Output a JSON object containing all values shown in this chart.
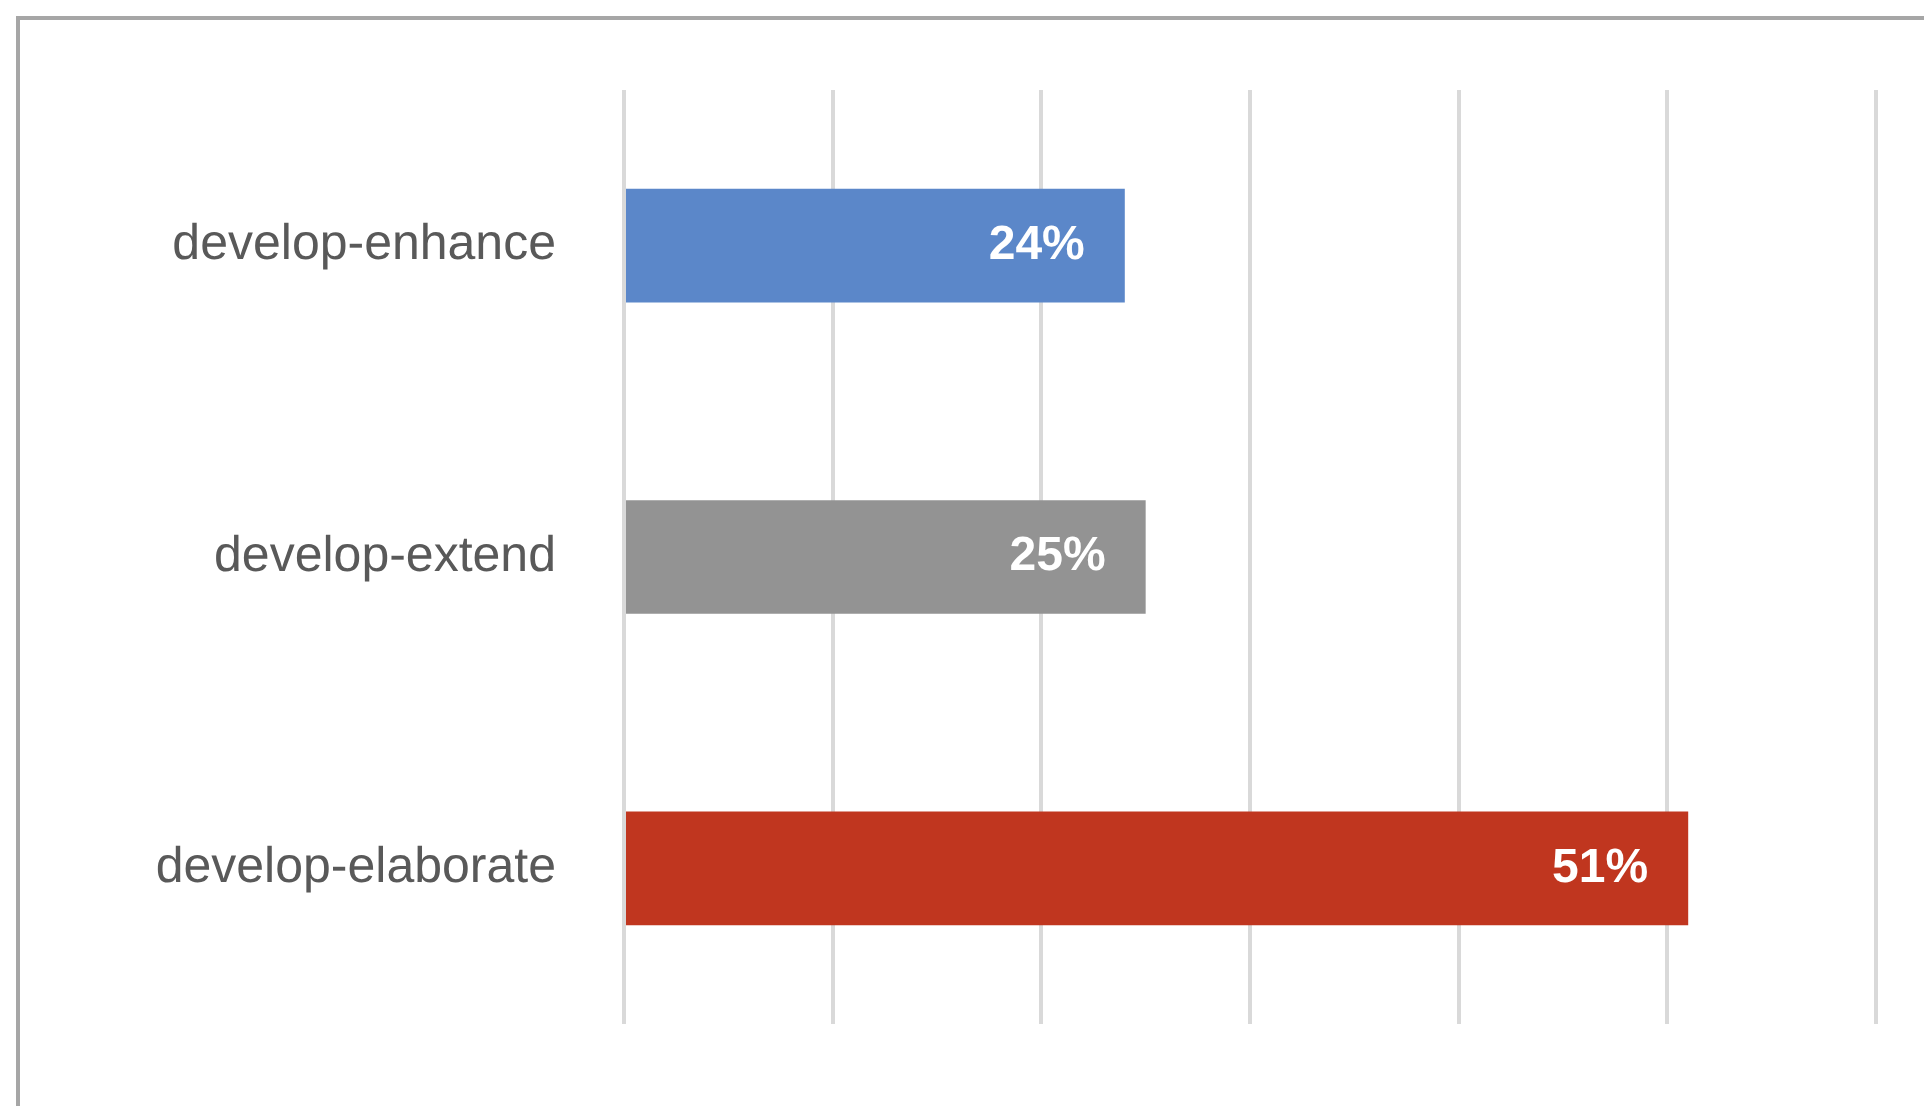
{
  "chart_data": {
    "type": "bar",
    "orientation": "horizontal",
    "categories": [
      "develop-enhance",
      "develop-extend",
      "develop-elaborate"
    ],
    "values": [
      24,
      25,
      51
    ],
    "colors": [
      "#5b87c9",
      "#939393",
      "#c0361f"
    ],
    "value_labels": [
      "24%",
      "25%",
      "51%"
    ],
    "xlim": [
      0,
      60
    ],
    "xticks": [
      {
        "value": 0,
        "label": null
      },
      {
        "value": 10,
        "label": null
      },
      {
        "value": 20,
        "label": null
      },
      {
        "value": 30,
        "label": null
      },
      {
        "value": 40,
        "label": null
      },
      {
        "value": 50,
        "label": null
      },
      {
        "value": 60,
        "label": null
      }
    ],
    "tick_labels": "y",
    "grid": "x",
    "legend": false
  }
}
